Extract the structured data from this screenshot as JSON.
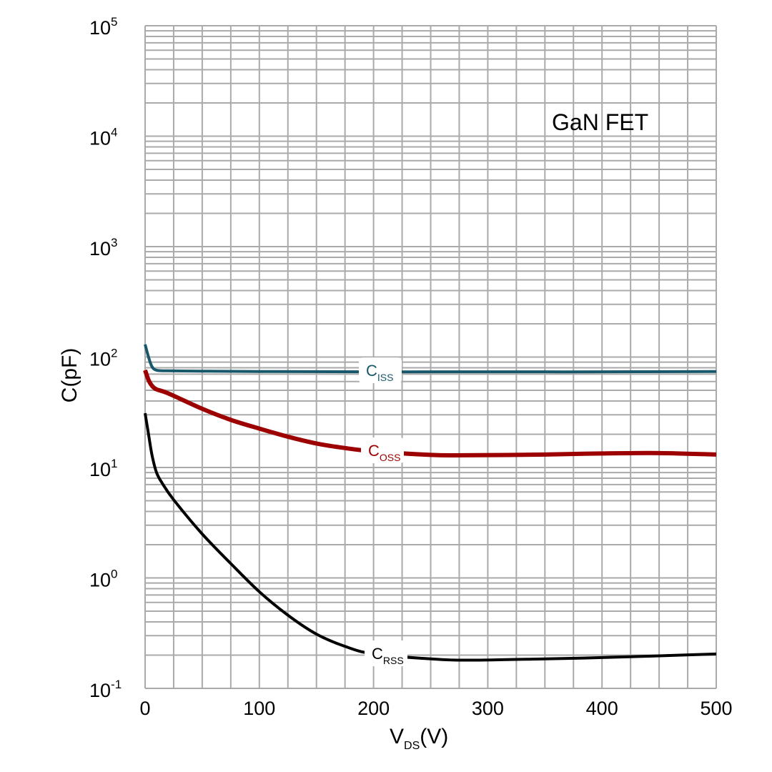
{
  "chart_data": {
    "type": "line",
    "title": "",
    "annotation": "GaN FET",
    "xlabel": {
      "main": "V",
      "sub": "DS",
      "suffix": "(V)"
    },
    "ylabel": "C(pF)",
    "xlim": [
      0,
      500
    ],
    "ylim": [
      0.1,
      100000
    ],
    "yscale": "log",
    "grid": true,
    "x_ticks": [
      "0",
      "100",
      "200",
      "300",
      "400",
      "500"
    ],
    "x_tick_values": [
      0,
      100,
      200,
      300,
      400,
      500
    ],
    "y_ticks": [
      {
        "base": "10",
        "exp": "-1",
        "value": 0.1
      },
      {
        "base": "10",
        "exp": "0",
        "value": 1
      },
      {
        "base": "10",
        "exp": "1",
        "value": 10
      },
      {
        "base": "10",
        "exp": "2",
        "value": 100
      },
      {
        "base": "10",
        "exp": "3",
        "value": 1000
      },
      {
        "base": "10",
        "exp": "4",
        "value": 10000
      },
      {
        "base": "10",
        "exp": "5",
        "value": 100000
      }
    ],
    "series": [
      {
        "name": "C",
        "sub": "ISS",
        "color": "#17586a",
        "x": [
          0,
          3,
          6,
          10,
          20,
          50,
          100,
          200,
          300,
          400,
          500
        ],
        "y": [
          130,
          100,
          82,
          76,
          75,
          74.5,
          74,
          73.5,
          73.5,
          73.5,
          74
        ]
      },
      {
        "name": "C",
        "sub": "OSS",
        "color": "#9c0000",
        "x": [
          0,
          3,
          6,
          10,
          20,
          50,
          75,
          100,
          125,
          150,
          175,
          200,
          250,
          280,
          350,
          400,
          450,
          500
        ],
        "y": [
          76,
          62,
          55,
          51,
          47,
          34,
          27,
          22.5,
          19,
          16.5,
          15,
          14,
          13,
          12.9,
          13.1,
          13.4,
          13.5,
          13.1
        ]
      },
      {
        "name": "C",
        "sub": "RSS",
        "color": "#000000",
        "x": [
          0,
          3,
          6,
          10,
          15,
          25,
          50,
          75,
          100,
          125,
          150,
          175,
          200,
          250,
          285,
          350,
          400,
          450,
          500
        ],
        "y": [
          31,
          20,
          13,
          9,
          7.2,
          5.1,
          2.5,
          1.35,
          0.75,
          0.46,
          0.31,
          0.24,
          0.205,
          0.185,
          0.18,
          0.185,
          0.19,
          0.197,
          0.205
        ]
      }
    ]
  }
}
